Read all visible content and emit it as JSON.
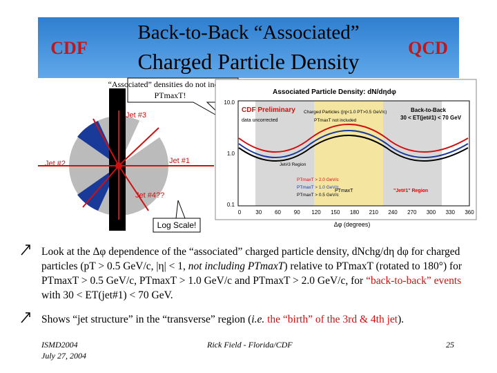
{
  "header": {
    "title_line1": "Back-to-Back “Associated”",
    "title_line2": "Charged Particle Density",
    "logo_left": "CDF",
    "logo_right": "QCD"
  },
  "callout_top": "“Associated” densities do not include PTmaxT!",
  "callout_log": "Log Scale!",
  "diagram": {
    "jet1": "Jet #1",
    "jet2": "Jet #2",
    "jet3": "Jet #3",
    "jet4": "Jet #4??"
  },
  "plot": {
    "title": "Associated Particle Density: dN/dηdφ",
    "preliminary": "CDF Preliminary",
    "uncorrected": "data uncorrected",
    "legend_title": "Charged Particles (|η|<1.0 PT>0.5 GeV/c)",
    "legend_note": "PTmaxT not included",
    "selection_title": "Back-to-Back",
    "selection_cut": "30 < ET(jet#1) < 70 GeV",
    "series": [
      "PTmaxT > 2.0 GeV/c",
      "PTmaxT > 1.0 GeV/c",
      "PTmaxT > 0.5 GeV/c"
    ],
    "jet3_region": "Jet#3 Region",
    "ptmax_label": "PTmaxT",
    "jet1_region": "\"Jet#1\" Region",
    "yticks": [
      "10.0",
      "1.0",
      "0.1"
    ],
    "xticks": [
      "0",
      "30",
      "60",
      "90",
      "120",
      "150",
      "180",
      "210",
      "240",
      "270",
      "300",
      "330",
      "360"
    ],
    "xlabel": "Δφ (degrees)"
  },
  "bullets": [
    {
      "parts": [
        "Look at the ",
        "Δφ dependence of the “associated” charged particle density, dNchg/dη dφ for charged particles (pT > 0.5 GeV/c, |η| < 1, ",
        "not including PTmaxT",
        ") relative to PTmaxT (rotated to 180°) for PTmaxT > 0.5 GeV/c, PTmaxT > 1.0 GeV/c and PTmaxT > 2.0 GeV/c, for ",
        "“back-to-back” events",
        " with 30 < ET(jet#1) < 70 GeV."
      ]
    },
    {
      "parts": [
        "Shows “jet structure” in the “transverse” region (",
        "i.e.",
        " ",
        "the “birth” of the 3rd & 4th jet",
        ")."
      ]
    }
  ],
  "footer": {
    "conference": "ISMD2004",
    "date": "July 27, 2004",
    "author": "Rick Field - Florida/CDF",
    "page": "25"
  }
}
